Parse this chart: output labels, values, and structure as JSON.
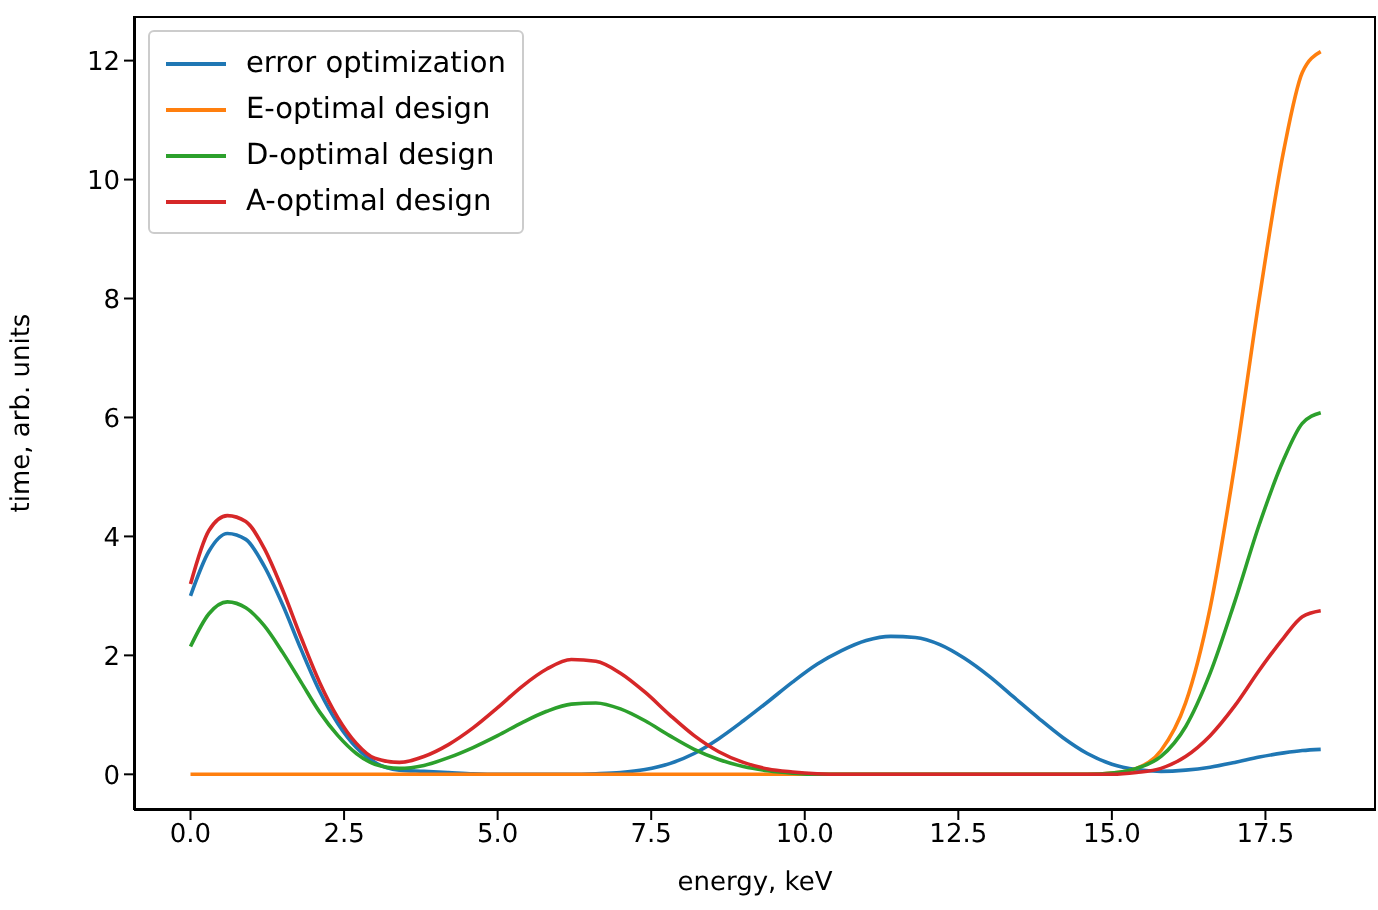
{
  "chart_data": {
    "type": "line",
    "xlabel": "energy, keV",
    "ylabel": "time, arb. units",
    "x": [
      0,
      0.3,
      0.6,
      0.9,
      1.2,
      1.5,
      1.8,
      2.1,
      2.4,
      2.7,
      3.0,
      3.4,
      3.8,
      4.2,
      4.6,
      5.0,
      5.4,
      5.8,
      6.2,
      6.6,
      7.0,
      7.4,
      7.8,
      8.2,
      8.6,
      9.0,
      9.4,
      9.8,
      10.2,
      10.6,
      11.0,
      11.4,
      11.8,
      12.2,
      12.6,
      13.0,
      13.4,
      13.8,
      14.2,
      14.6,
      15.0,
      15.4,
      15.8,
      16.2,
      16.6,
      17.0,
      17.4,
      17.8,
      18.1,
      18.4
    ],
    "series": [
      {
        "name": "error optimization",
        "color": "#1f77b4",
        "values": [
          3.0,
          3.75,
          4.05,
          3.95,
          3.5,
          2.85,
          2.1,
          1.4,
          0.85,
          0.45,
          0.2,
          0.07,
          0.05,
          0.03,
          0.01,
          0,
          0,
          0,
          0,
          0.01,
          0.03,
          0.08,
          0.18,
          0.35,
          0.6,
          0.9,
          1.22,
          1.55,
          1.85,
          2.08,
          2.25,
          2.32,
          2.3,
          2.18,
          1.95,
          1.65,
          1.3,
          0.95,
          0.62,
          0.35,
          0.17,
          0.08,
          0.05,
          0.07,
          0.12,
          0.2,
          0.29,
          0.36,
          0.4,
          0.42
        ]
      },
      {
        "name": "E-optimal design",
        "color": "#ff7f0e",
        "values": [
          0,
          0,
          0,
          0,
          0,
          0,
          0,
          0,
          0,
          0,
          0,
          0,
          0,
          0,
          0,
          0,
          0,
          0,
          0,
          0,
          0,
          0,
          0,
          0,
          0,
          0,
          0,
          0,
          0,
          0,
          0,
          0,
          0,
          0,
          0,
          0,
          0,
          0,
          0,
          0,
          0.02,
          0.1,
          0.4,
          1.2,
          2.8,
          5.2,
          8.0,
          10.5,
          11.8,
          12.15
        ]
      },
      {
        "name": "D-optimal design",
        "color": "#2ca02c",
        "values": [
          2.15,
          2.7,
          2.9,
          2.8,
          2.5,
          2.05,
          1.55,
          1.05,
          0.65,
          0.35,
          0.17,
          0.1,
          0.15,
          0.28,
          0.45,
          0.65,
          0.87,
          1.06,
          1.18,
          1.2,
          1.1,
          0.9,
          0.65,
          0.42,
          0.25,
          0.13,
          0.06,
          0.02,
          0,
          0,
          0,
          0,
          0,
          0,
          0,
          0,
          0,
          0,
          0,
          0,
          0.02,
          0.1,
          0.3,
          0.8,
          1.7,
          2.9,
          4.2,
          5.3,
          5.9,
          6.08
        ]
      },
      {
        "name": "A-optimal design",
        "color": "#d62728",
        "values": [
          3.2,
          4.1,
          4.35,
          4.25,
          3.8,
          3.1,
          2.3,
          1.55,
          0.95,
          0.52,
          0.27,
          0.2,
          0.3,
          0.5,
          0.78,
          1.12,
          1.48,
          1.77,
          1.93,
          1.9,
          1.7,
          1.38,
          1.0,
          0.65,
          0.38,
          0.2,
          0.09,
          0.04,
          0.01,
          0,
          0,
          0,
          0,
          0,
          0,
          0,
          0,
          0,
          0,
          0,
          0,
          0.03,
          0.1,
          0.3,
          0.65,
          1.15,
          1.75,
          2.3,
          2.65,
          2.75
        ]
      }
    ],
    "xlim": [
      -0.92,
      19.3
    ],
    "xticks": [
      {
        "value": 0,
        "label": "0.0"
      },
      {
        "value": 2.5,
        "label": "2.5"
      },
      {
        "value": 5,
        "label": "5.0"
      },
      {
        "value": 7.5,
        "label": "7.5"
      },
      {
        "value": 10,
        "label": "10.0"
      },
      {
        "value": 12.5,
        "label": "12.5"
      },
      {
        "value": 15,
        "label": "15.0"
      },
      {
        "value": 17.5,
        "label": "17.5"
      }
    ],
    "ylim": [
      -0.6,
      12.75
    ],
    "yticks": [
      0,
      2,
      4,
      6,
      8,
      10,
      12
    ],
    "legend": "top left",
    "marker": "none",
    "line_style": "solid"
  }
}
